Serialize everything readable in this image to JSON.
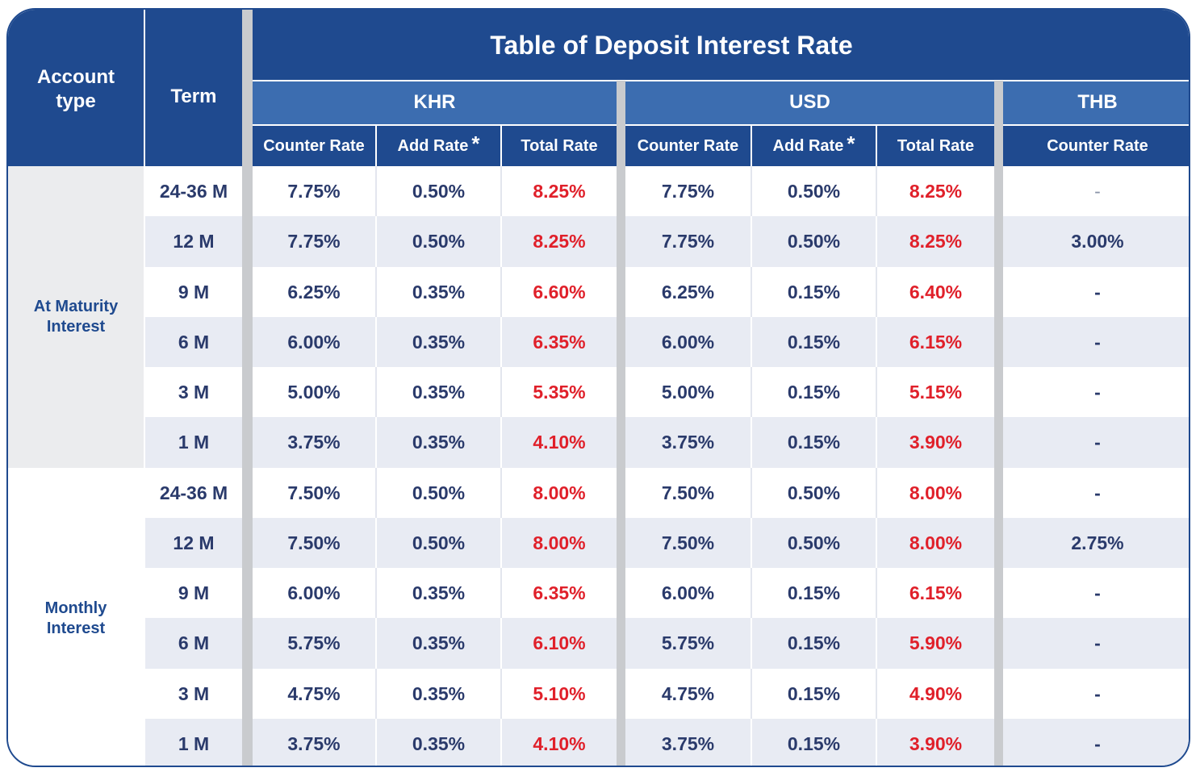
{
  "title": "Table of Deposit Interest Rate",
  "headers": {
    "account_type": "Account type",
    "term": "Term",
    "currencies": {
      "khr": "KHR",
      "usd": "USD",
      "thb": "THB"
    },
    "counter_rate": "Counter Rate",
    "add_rate": "Add Rate",
    "add_rate_marker": "*",
    "total_rate": "Total Rate"
  },
  "account_types": [
    {
      "label_line1": "At Maturity",
      "label_line2": "Interest"
    },
    {
      "label_line1": "Monthly",
      "label_line2": "Interest"
    }
  ],
  "rows": [
    {
      "term": "24-36 M",
      "khr_counter": "7.75%",
      "khr_add": "0.50%",
      "khr_total": "8.25%",
      "usd_counter": "7.75%",
      "usd_add": "0.50%",
      "usd_total": "8.25%",
      "thb_counter": "-"
    },
    {
      "term": "12 M",
      "khr_counter": "7.75%",
      "khr_add": "0.50%",
      "khr_total": "8.25%",
      "usd_counter": "7.75%",
      "usd_add": "0.50%",
      "usd_total": "8.25%",
      "thb_counter": "3.00%"
    },
    {
      "term": "9 M",
      "khr_counter": "6.25%",
      "khr_add": "0.35%",
      "khr_total": "6.60%",
      "usd_counter": "6.25%",
      "usd_add": "0.15%",
      "usd_total": "6.40%",
      "thb_counter": "-"
    },
    {
      "term": "6 M",
      "khr_counter": "6.00%",
      "khr_add": "0.35%",
      "khr_total": "6.35%",
      "usd_counter": "6.00%",
      "usd_add": "0.15%",
      "usd_total": "6.15%",
      "thb_counter": "-"
    },
    {
      "term": "3 M",
      "khr_counter": "5.00%",
      "khr_add": "0.35%",
      "khr_total": "5.35%",
      "usd_counter": "5.00%",
      "usd_add": "0.15%",
      "usd_total": "5.15%",
      "thb_counter": "-"
    },
    {
      "term": "1 M",
      "khr_counter": "3.75%",
      "khr_add": "0.35%",
      "khr_total": "4.10%",
      "usd_counter": "3.75%",
      "usd_add": "0.15%",
      "usd_total": "3.90%",
      "thb_counter": "-"
    },
    {
      "term": "24-36 M",
      "khr_counter": "7.50%",
      "khr_add": "0.50%",
      "khr_total": "8.00%",
      "usd_counter": "7.50%",
      "usd_add": "0.50%",
      "usd_total": "8.00%",
      "thb_counter": "-"
    },
    {
      "term": "12 M",
      "khr_counter": "7.50%",
      "khr_add": "0.50%",
      "khr_total": "8.00%",
      "usd_counter": "7.50%",
      "usd_add": "0.50%",
      "usd_total": "8.00%",
      "thb_counter": "2.75%"
    },
    {
      "term": "9 M",
      "khr_counter": "6.00%",
      "khr_add": "0.35%",
      "khr_total": "6.35%",
      "usd_counter": "6.00%",
      "usd_add": "0.15%",
      "usd_total": "6.15%",
      "thb_counter": "-"
    },
    {
      "term": "6 M",
      "khr_counter": "5.75%",
      "khr_add": "0.35%",
      "khr_total": "6.10%",
      "usd_counter": "5.75%",
      "usd_add": "0.15%",
      "usd_total": "5.90%",
      "thb_counter": "-"
    },
    {
      "term": "3 M",
      "khr_counter": "4.75%",
      "khr_add": "0.35%",
      "khr_total": "5.10%",
      "usd_counter": "4.75%",
      "usd_add": "0.15%",
      "usd_total": "4.90%",
      "thb_counter": "-"
    },
    {
      "term": "1 M",
      "khr_counter": "3.75%",
      "khr_add": "0.35%",
      "khr_total": "4.10%",
      "usd_counter": "3.75%",
      "usd_add": "0.15%",
      "usd_total": "3.90%",
      "thb_counter": "-"
    }
  ],
  "colors": {
    "header_navy": "#1f4a8f",
    "currency_blue": "#3c6db0",
    "total_rate_red": "#e0202a",
    "body_text": "#2a3a6b",
    "row_stripe": "#e8ebf3",
    "maturity_panel": "#ebecee",
    "separator_gray": "#c9cbce"
  }
}
